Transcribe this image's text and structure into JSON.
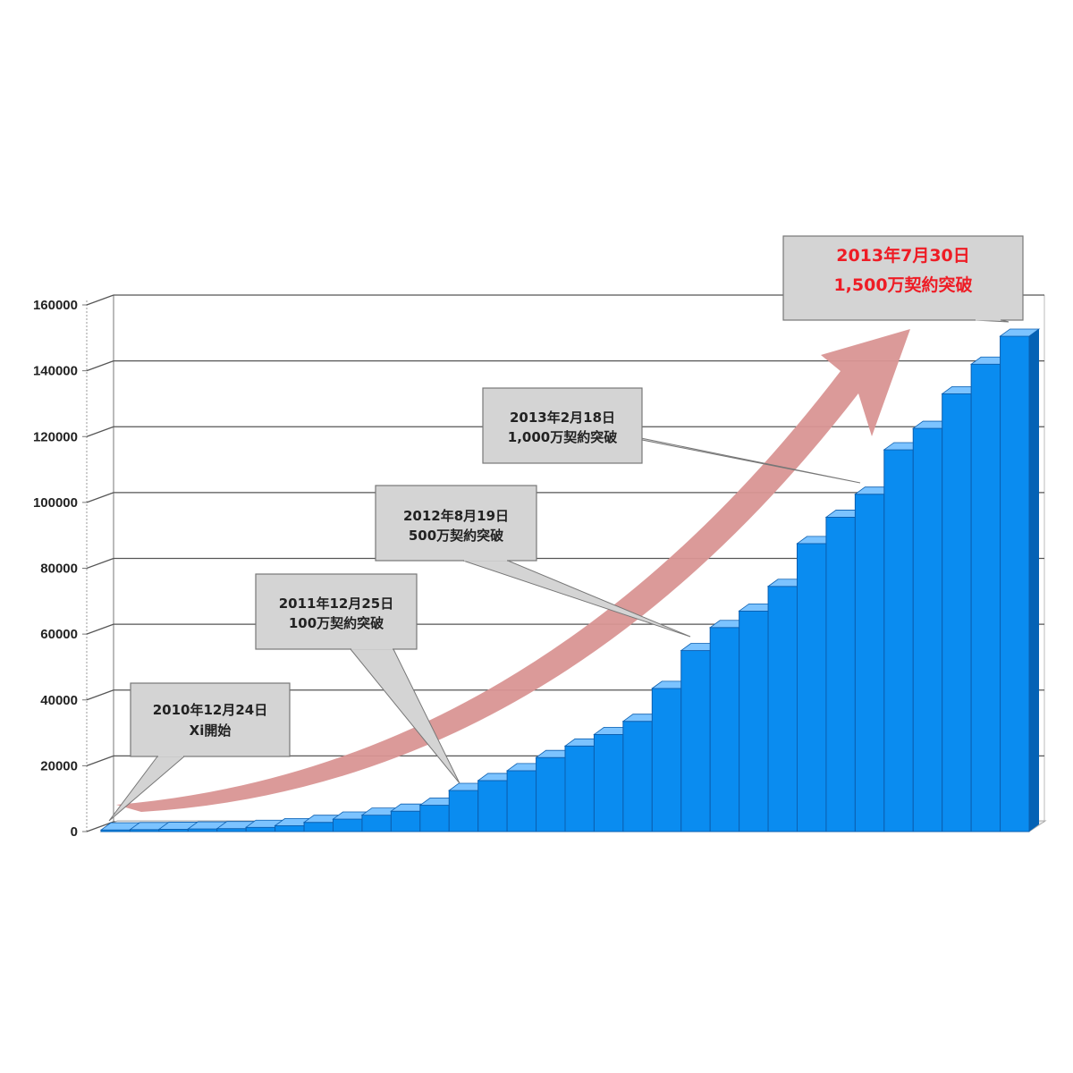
{
  "chart_data": {
    "type": "bar",
    "title": "",
    "xlabel": "",
    "ylabel": "",
    "ylim": [
      0,
      160000
    ],
    "yticks": [
      0,
      20000,
      40000,
      60000,
      80000,
      100000,
      120000,
      140000,
      160000
    ],
    "grid": true,
    "bar_color": "#0a8cf0",
    "values": [
      500,
      600,
      700,
      800,
      900,
      1300,
      1800,
      2800,
      3800,
      5000,
      6200,
      8000,
      12500,
      15500,
      18500,
      22500,
      26000,
      29500,
      33500,
      43500,
      55000,
      62000,
      67000,
      74500,
      87500,
      95500,
      102500,
      116000,
      122500,
      133000,
      142000,
      150500
    ],
    "annotations": [
      {
        "bar": 0,
        "lines": [
          "2010年12月24日",
          "Xi開始"
        ],
        "emphasis": false
      },
      {
        "bar": 12,
        "lines": [
          "2011年12月25日",
          "100万契約突破"
        ],
        "emphasis": false
      },
      {
        "bar": 20,
        "lines": [
          "2012年8月19日",
          "500万契約突破"
        ],
        "emphasis": false
      },
      {
        "bar": 26,
        "lines": [
          "2013年2月18日",
          "1,000万契約突破"
        ],
        "emphasis": false
      },
      {
        "bar": 31,
        "lines": [
          "2013年7月30日",
          "1,500万契約突破"
        ],
        "emphasis": true
      }
    ],
    "trend_arrow_color": "#d99594"
  }
}
